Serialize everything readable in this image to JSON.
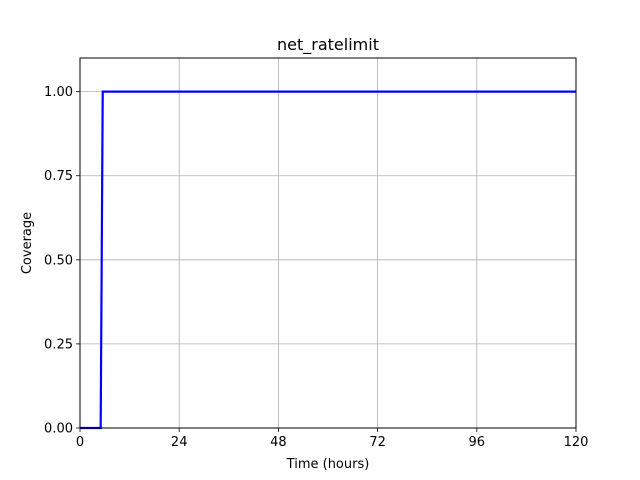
{
  "chart_data": {
    "type": "line",
    "title": "net_ratelimit",
    "xlabel": "Time (hours)",
    "ylabel": "Coverage",
    "xlim": [
      0,
      120
    ],
    "ylim": [
      0,
      1.1
    ],
    "x_ticks": [
      "0",
      "24",
      "48",
      "72",
      "96",
      "120"
    ],
    "y_ticks": [
      "0.00",
      "0.25",
      "0.50",
      "0.75",
      "1.00"
    ],
    "grid": true,
    "series": [
      {
        "color": "#0000ff",
        "x": [
          0,
          5,
          5.5,
          120
        ],
        "y": [
          0,
          0,
          1,
          1
        ]
      }
    ]
  }
}
